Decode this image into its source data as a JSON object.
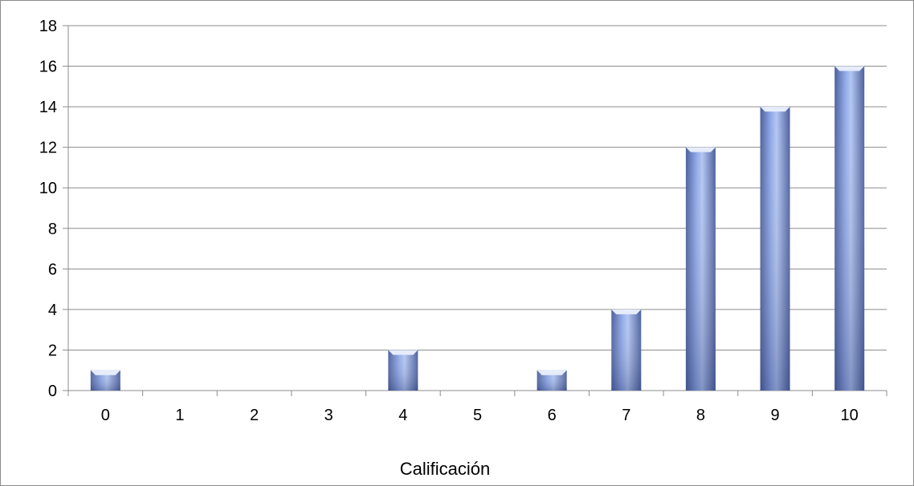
{
  "chart_data": {
    "type": "bar",
    "title": "",
    "xlabel": "Calificación",
    "ylabel": "",
    "categories": [
      "0",
      "1",
      "2",
      "3",
      "4",
      "5",
      "6",
      "7",
      "8",
      "9",
      "10"
    ],
    "values": [
      1,
      0,
      0,
      0,
      2,
      0,
      1,
      4,
      12,
      14,
      16
    ],
    "ylim": [
      0,
      18
    ],
    "yticks": [
      "0",
      "2",
      "4",
      "6",
      "8",
      "10",
      "12",
      "14",
      "16",
      "18"
    ],
    "grid": true,
    "legend": "none",
    "colors": {
      "bar_light": "#b3c6f2",
      "bar_mid": "#8ea7e6",
      "bar_dark": "#4c5f9c",
      "gridline": "#8c8c8c",
      "axis": "#8c8c8c"
    }
  }
}
